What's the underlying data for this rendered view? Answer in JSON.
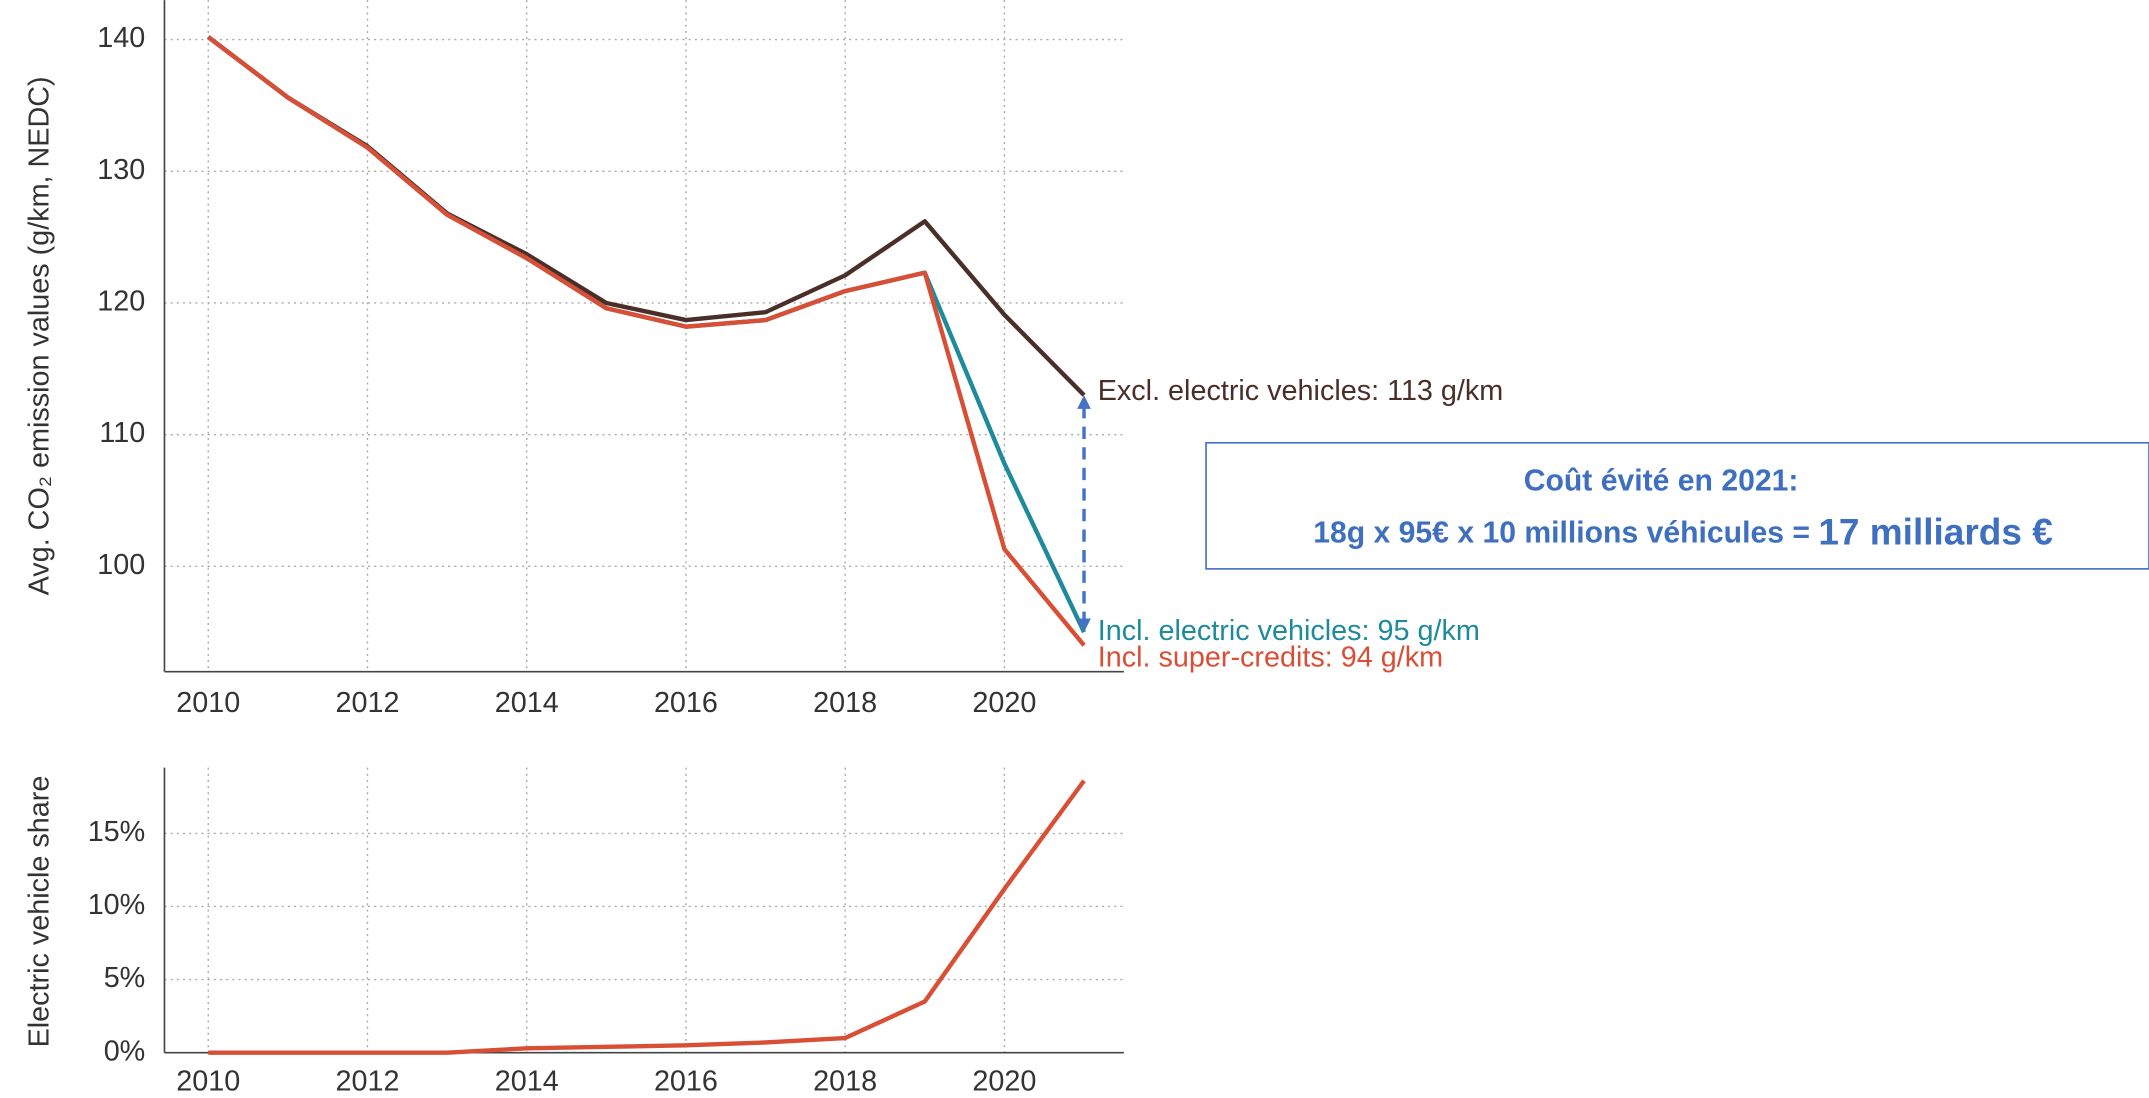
{
  "chart_data": [
    {
      "type": "line",
      "y_label": "Avg. CO₂ emission values (g/km, NEDC)",
      "x": [
        2010,
        2011,
        2012,
        2013,
        2014,
        2015,
        2016,
        2017,
        2018,
        2019,
        2020,
        2021
      ],
      "xlim": [
        2009.45,
        2021.5
      ],
      "xticks": [
        2010,
        2012,
        2014,
        2016,
        2018,
        2020
      ],
      "ylim": [
        92,
        143
      ],
      "yticks": [
        100,
        110,
        120,
        130,
        140
      ],
      "grid": true,
      "series": [
        {
          "name": "Excl. electric vehicles: 113 g/km",
          "color": "#4a2e28",
          "values": [
            140.2,
            135.6,
            131.9,
            126.8,
            123.7,
            120.0,
            118.7,
            119.3,
            122.1,
            126.2,
            119.1,
            113
          ]
        },
        {
          "name": "Incl. electric vehicles: 95 g/km",
          "color": "#1f8a9a",
          "values": [
            140.2,
            135.6,
            131.8,
            126.7,
            123.4,
            119.6,
            118.2,
            118.7,
            120.9,
            122.3,
            107.8,
            95
          ]
        },
        {
          "name": "Incl. super-credits: 94 g/km",
          "color": "#d94f35",
          "values": [
            140.2,
            135.6,
            131.8,
            126.7,
            123.4,
            119.6,
            118.2,
            118.7,
            120.9,
            122.3,
            101.3,
            94
          ]
        }
      ],
      "annotation": {
        "title": "Coût évité en 2021:",
        "text": "18g x 95€ x 10 millions véhicules = ",
        "highlight": "17 milliards €"
      }
    },
    {
      "type": "line",
      "y_label": "Electric vehicle share",
      "x": [
        2010,
        2011,
        2012,
        2013,
        2014,
        2015,
        2016,
        2017,
        2018,
        2019,
        2020,
        2021
      ],
      "xlim": [
        2009.45,
        2021.5
      ],
      "xticks": [
        2010,
        2012,
        2014,
        2016,
        2018,
        2020
      ],
      "ylim": [
        0,
        19.5
      ],
      "yticks": [
        {
          "value": 0,
          "label": "0%"
        },
        {
          "value": 5,
          "label": "5%"
        },
        {
          "value": 10,
          "label": "10%"
        },
        {
          "value": 15,
          "label": "15%"
        }
      ],
      "grid": true,
      "series": [
        {
          "color": "#d94f35",
          "values": [
            0,
            0,
            0,
            0,
            0.3,
            0.4,
            0.5,
            0.7,
            1.0,
            3.5,
            11.2,
            18.6
          ]
        }
      ]
    }
  ]
}
